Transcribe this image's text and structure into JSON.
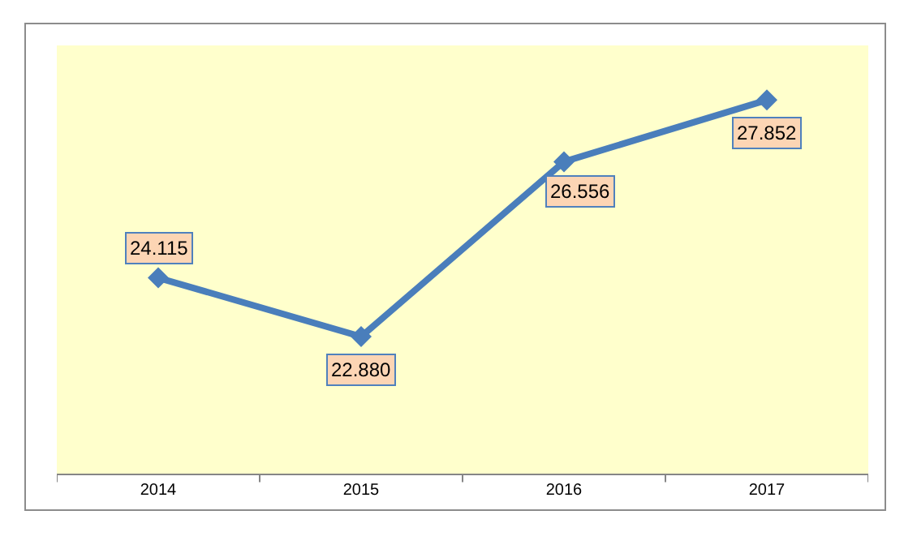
{
  "chart_data": {
    "type": "line",
    "categories": [
      "2014",
      "2015",
      "2016",
      "2017"
    ],
    "series": [
      {
        "color": "#4a7ebb",
        "values": [
          24.115,
          22.88,
          26.556,
          27.852
        ],
        "value_labels": [
          "24.115",
          "22.880",
          "26.556",
          "27.852"
        ]
      }
    ],
    "ylim": [
      20,
      29
    ],
    "tick_labels": "x",
    "grid": false,
    "legend": false,
    "marker": "diamond",
    "line_style": "solid"
  }
}
